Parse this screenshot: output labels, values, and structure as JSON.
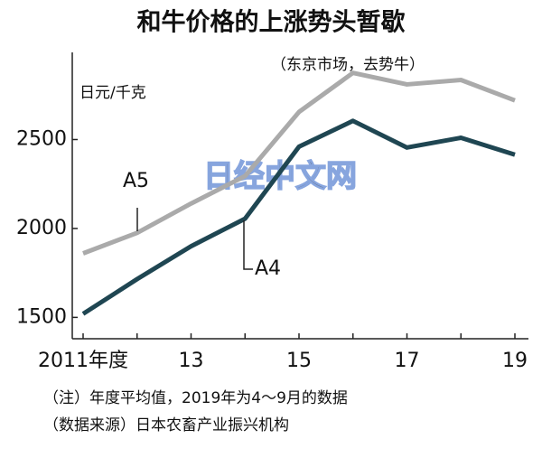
{
  "chart_data": {
    "type": "line",
    "title": "和牛价格的上涨势头暂歇",
    "subtitle": "（东京市场，去势牛）",
    "y_label": "日元/千克",
    "watermark": "日经中文网",
    "categories": [
      "2011年度",
      null,
      "13",
      null,
      "15",
      null,
      "17",
      null,
      "19"
    ],
    "series": [
      {
        "name": "A5",
        "color": "#aaaaaa",
        "values": [
          1860,
          1975,
          2140,
          2295,
          2655,
          2875,
          2810,
          2835,
          2720
        ]
      },
      {
        "name": "A4",
        "color": "#1f4652",
        "values": [
          1520,
          1715,
          1900,
          2055,
          2460,
          2605,
          2455,
          2510,
          2415
        ]
      }
    ],
    "ylim": [
      1380,
      2990
    ],
    "yticks": [
      1500,
      2000,
      2500
    ],
    "grid": false,
    "notes": [
      "（注）年度平均值，2019年为4～9月的数据",
      "（数据来源）日本农畜产业振兴机构"
    ]
  }
}
